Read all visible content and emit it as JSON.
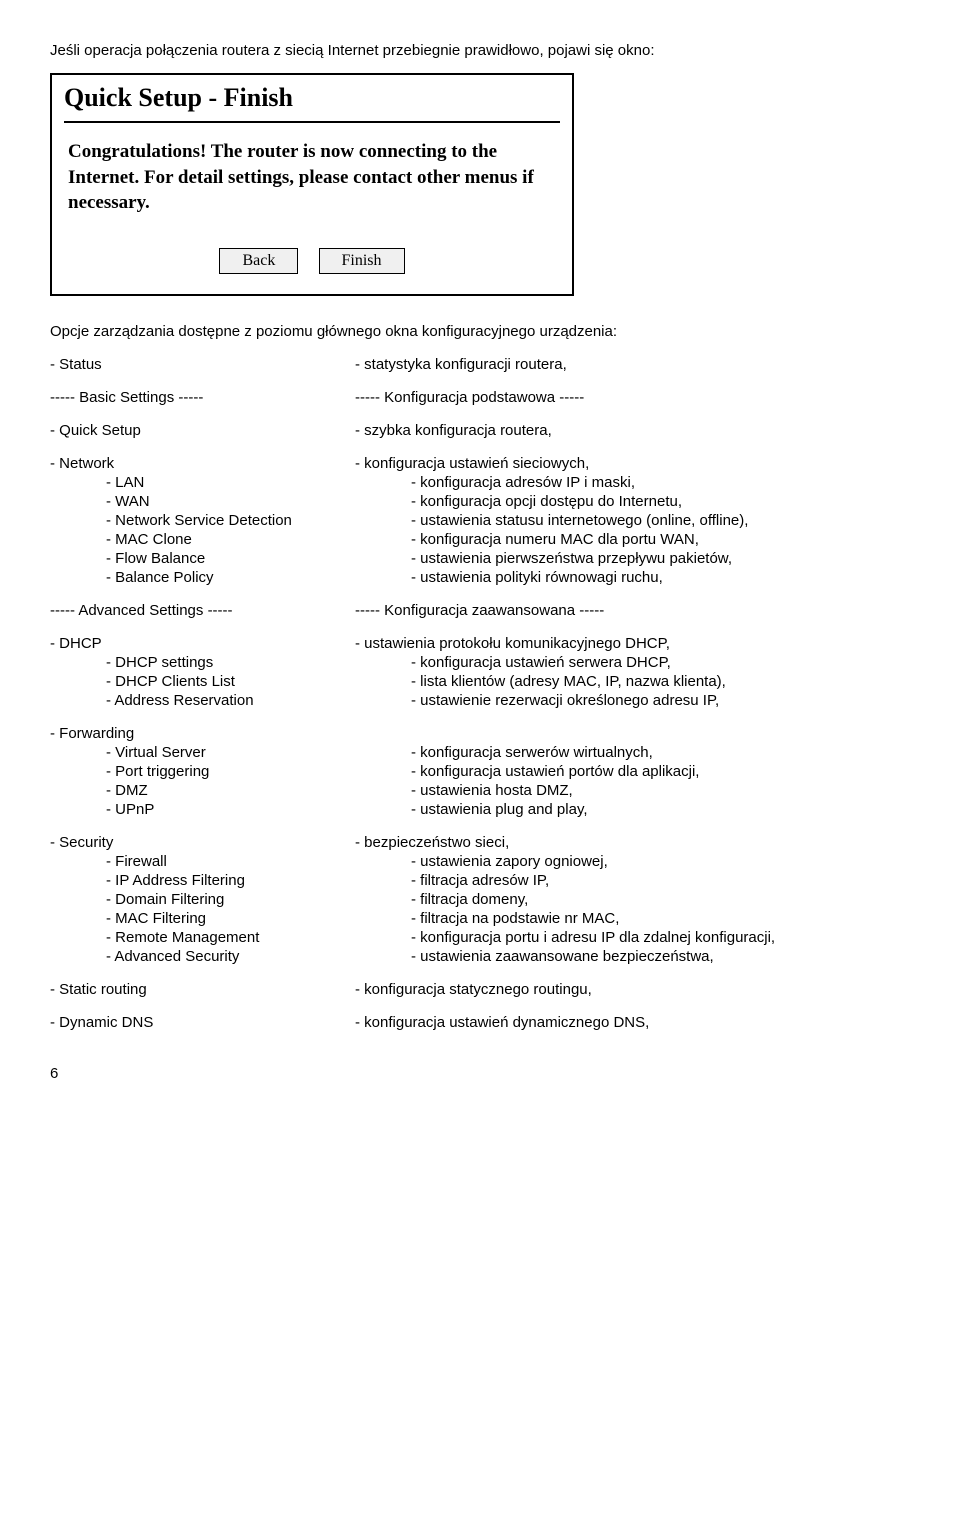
{
  "intro": "Jeśli operacja połączenia routera z siecią Internet przebiegnie prawidłowo, pojawi się okno:",
  "dialog": {
    "title": "Quick Setup - Finish",
    "body": "Congratulations! The router is now connecting to the Internet. For detail settings, please contact other menus if necessary.",
    "back": "Back",
    "finish": "Finish"
  },
  "midline": "Opcje zarządzania dostępne z poziomu głównego okna konfiguracyjnego urządzenia:",
  "rows": [
    {
      "l": "- Status",
      "r": "- statystyka konfiguracji routera,",
      "gapAfter": true
    },
    {
      "l": "-----  Basic Settings  -----",
      "r": "----- Konfiguracja podstawowa -----",
      "gapAfter": true
    },
    {
      "l": "- Quick Setup",
      "r": "- szybka konfiguracja routera,",
      "gapAfter": true
    },
    {
      "l": "- Network",
      "r": "- konfiguracja ustawień sieciowych,"
    },
    {
      "l": "- LAN",
      "r": "- konfiguracja adresów IP i maski,",
      "indent": true
    },
    {
      "l": "- WAN",
      "r": "- konfiguracja opcji dostępu do Internetu,",
      "indent": true
    },
    {
      "l": "- Network Service Detection",
      "r": "- ustawienia statusu internetowego (online, offline),",
      "indent": true
    },
    {
      "l": "- MAC Clone",
      "r": "- konfiguracja numeru MAC dla portu WAN,",
      "indent": true
    },
    {
      "l": "- Flow Balance",
      "r": "- ustawienia pierwszeństwa przepływu pakietów,",
      "indent": true
    },
    {
      "l": "- Balance Policy",
      "r": "- ustawienia polityki równowagi ruchu,",
      "indent": true,
      "gapAfter": true
    },
    {
      "l": "----- Advanced Settings -----",
      "r": "----- Konfiguracja zaawansowana -----",
      "gapAfter": true
    },
    {
      "l": "- DHCP",
      "r": "- ustawienia protokołu komunikacyjnego DHCP,"
    },
    {
      "l": "- DHCP settings",
      "r": "- konfiguracja ustawień serwera DHCP,",
      "indent": true
    },
    {
      "l": "- DHCP Clients List",
      "r": "- lista klientów (adresy MAC, IP, nazwa klienta),",
      "indent": true
    },
    {
      "l": "- Address Reservation",
      "r": "- ustawienie rezerwacji określonego adresu IP,",
      "indent": true,
      "gapAfter": true
    },
    {
      "l": "- Forwarding",
      "r": ""
    },
    {
      "l": "- Virtual Server",
      "r": "- konfiguracja serwerów wirtualnych,",
      "indent": true
    },
    {
      "l": "- Port triggering",
      "r": "- konfiguracja ustawień portów dla aplikacji,",
      "indent": true
    },
    {
      "l": "- DMZ",
      "r": "- ustawienia hosta DMZ,",
      "indent": true
    },
    {
      "l": "- UPnP",
      "r": "- ustawienia plug and play,",
      "indent": true,
      "gapAfter": true
    },
    {
      "l": "- Security",
      "r": "- bezpieczeństwo sieci,"
    },
    {
      "l": "- Firewall",
      "r": "- ustawienia zapory ogniowej,",
      "indent": true
    },
    {
      "l": "- IP Address Filtering",
      "r": "- filtracja adresów IP,",
      "indent": true
    },
    {
      "l": "- Domain Filtering",
      "r": "- filtracja domeny,",
      "indent": true
    },
    {
      "l": "- MAC Filtering",
      "r": "- filtracja na podstawie nr MAC,",
      "indent": true
    },
    {
      "l": "- Remote Management",
      "r": "- konfiguracja portu i adresu IP dla zdalnej konfiguracji,",
      "indent": true
    },
    {
      "l": "- Advanced Security",
      "r": "- ustawienia zaawansowane bezpieczeństwa,",
      "indent": true,
      "gapAfter": true
    },
    {
      "l": "- Static routing",
      "r": "- konfiguracja statycznego routingu,",
      "gapAfter": true
    },
    {
      "l": "- Dynamic DNS",
      "r": "- konfiguracja ustawień dynamicznego DNS,"
    }
  ],
  "pageNumber": "6"
}
